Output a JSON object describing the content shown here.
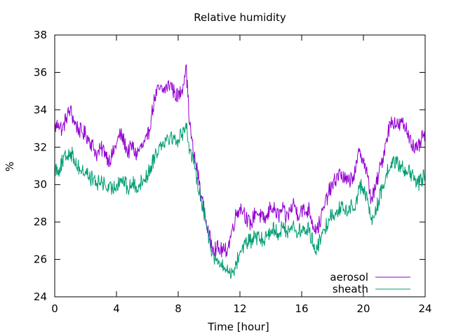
{
  "chart_data": {
    "type": "line",
    "title": "Relative humidity",
    "xlabel": "Time [hour]",
    "ylabel": "%",
    "xlim": [
      0,
      24
    ],
    "ylim": [
      24,
      38
    ],
    "xticks": [
      0,
      4,
      8,
      12,
      16,
      20,
      24
    ],
    "xtick_labels": [
      "0",
      "4",
      "8",
      "12",
      "16",
      "20",
      "24"
    ],
    "yticks": [
      24,
      26,
      28,
      30,
      32,
      34,
      36,
      38
    ],
    "ytick_labels": [
      "24",
      "26",
      "28",
      "30",
      "32",
      "34",
      "36",
      "38"
    ],
    "grid": false,
    "legend_position": "bottom-right",
    "series": [
      {
        "name": "aerosol",
        "color": "#9400d3",
        "x": [
          0,
          0.25,
          0.5,
          0.75,
          1,
          1.25,
          1.5,
          1.75,
          2,
          2.25,
          2.5,
          2.75,
          3,
          3.25,
          3.5,
          3.75,
          4,
          4.25,
          4.5,
          4.75,
          5,
          5.25,
          5.5,
          5.75,
          6,
          6.25,
          6.5,
          6.75,
          7,
          7.25,
          7.5,
          7.75,
          8,
          8.25,
          8.5,
          8.75,
          9,
          9.25,
          9.5,
          9.75,
          10,
          10.25,
          10.5,
          10.75,
          11,
          11.25,
          11.5,
          11.75,
          12,
          12.25,
          12.5,
          12.75,
          13,
          13.25,
          13.5,
          13.75,
          14,
          14.25,
          14.5,
          14.75,
          15,
          15.25,
          15.5,
          15.75,
          16,
          16.25,
          16.5,
          16.75,
          17,
          17.25,
          17.5,
          17.75,
          18,
          18.25,
          18.5,
          18.75,
          19,
          19.25,
          19.5,
          19.75,
          20,
          20.25,
          20.5,
          20.75,
          21,
          21.25,
          21.5,
          21.75,
          22,
          22.25,
          22.5,
          22.75,
          23,
          23.25,
          23.5,
          23.75,
          24
        ],
        "y": [
          33.0,
          33.3,
          32.9,
          33.6,
          34.0,
          33.4,
          33.0,
          32.8,
          32.7,
          32.4,
          32.0,
          31.6,
          31.9,
          31.8,
          31.3,
          31.6,
          32.2,
          32.7,
          32.3,
          31.7,
          32.1,
          31.6,
          31.9,
          32.1,
          32.4,
          33.6,
          34.7,
          35.1,
          35.0,
          35.2,
          35.4,
          34.9,
          34.7,
          35.1,
          36.4,
          33.2,
          31.6,
          30.7,
          29.4,
          28.3,
          27.2,
          26.7,
          26.6,
          26.5,
          26.4,
          26.7,
          27.6,
          28.4,
          28.8,
          28.6,
          28.0,
          27.9,
          28.6,
          28.4,
          28.1,
          28.2,
          28.9,
          28.6,
          28.3,
          28.7,
          28.2,
          28.6,
          29.0,
          28.4,
          28.7,
          28.5,
          28.7,
          27.8,
          27.6,
          28.2,
          28.9,
          29.6,
          29.9,
          30.4,
          30.6,
          30.3,
          30.1,
          30.4,
          30.7,
          31.9,
          31.3,
          30.5,
          29.2,
          29.7,
          30.6,
          31.4,
          32.5,
          33.3,
          33.4,
          33.1,
          33.3,
          33.0,
          32.6,
          32.0,
          31.8,
          32.4,
          32.7
        ]
      },
      {
        "name": "sheath",
        "color": "#009e73",
        "x": [
          0,
          0.25,
          0.5,
          0.75,
          1,
          1.25,
          1.5,
          1.75,
          2,
          2.25,
          2.5,
          2.75,
          3,
          3.25,
          3.5,
          3.75,
          4,
          4.25,
          4.5,
          4.75,
          5,
          5.25,
          5.5,
          5.75,
          6,
          6.25,
          6.5,
          6.75,
          7,
          7.25,
          7.5,
          7.75,
          8,
          8.25,
          8.5,
          8.75,
          9,
          9.25,
          9.5,
          9.75,
          10,
          10.25,
          10.5,
          10.75,
          11,
          11.25,
          11.5,
          11.75,
          12,
          12.25,
          12.5,
          12.75,
          13,
          13.25,
          13.5,
          13.75,
          14,
          14.25,
          14.5,
          14.75,
          15,
          15.25,
          15.5,
          15.75,
          16,
          16.25,
          16.5,
          16.75,
          17,
          17.25,
          17.5,
          17.75,
          18,
          18.25,
          18.5,
          18.75,
          19,
          19.25,
          19.5,
          19.75,
          20,
          20.25,
          20.5,
          20.75,
          21,
          21.25,
          21.5,
          21.75,
          22,
          22.25,
          22.5,
          22.75,
          23,
          23.25,
          23.5,
          23.75,
          24
        ],
        "y": [
          30.9,
          30.8,
          31.2,
          31.5,
          31.8,
          31.4,
          31.0,
          30.7,
          30.7,
          30.4,
          30.3,
          30.0,
          30.2,
          30.0,
          29.7,
          29.8,
          30.0,
          30.3,
          30.2,
          29.7,
          30.1,
          29.9,
          30.0,
          30.3,
          30.5,
          31.0,
          31.6,
          32.0,
          32.3,
          32.5,
          32.6,
          32.4,
          32.4,
          32.7,
          33.3,
          31.9,
          31.1,
          30.2,
          29.2,
          28.2,
          27.1,
          26.3,
          25.9,
          25.7,
          25.5,
          25.4,
          25.3,
          25.7,
          26.4,
          26.8,
          26.9,
          27.0,
          27.2,
          27.1,
          27.0,
          27.3,
          27.6,
          27.6,
          27.4,
          27.7,
          27.5,
          27.7,
          27.8,
          27.4,
          27.6,
          27.5,
          27.6,
          26.8,
          26.6,
          27.1,
          27.6,
          28.2,
          28.4,
          28.6,
          28.8,
          28.6,
          28.6,
          28.9,
          29.0,
          29.9,
          29.8,
          29.2,
          28.1,
          28.4,
          29.2,
          29.8,
          30.6,
          31.0,
          31.3,
          31.0,
          31.0,
          30.8,
          30.6,
          30.3,
          30.0,
          30.3,
          30.5
        ]
      }
    ]
  }
}
